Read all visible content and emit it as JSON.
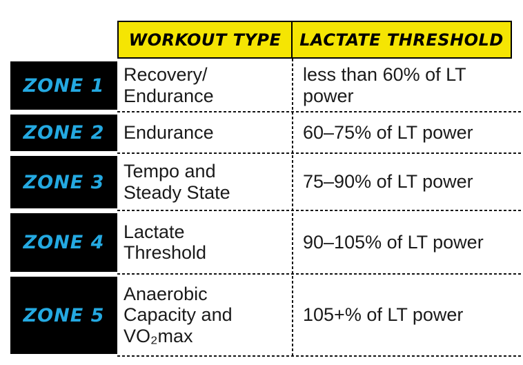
{
  "table": {
    "headers": {
      "workout_type": "WORKOUT TYPE",
      "lactate_threshold": "LACTATE THRESHOLD"
    },
    "rows": [
      {
        "zone": "ZONE 1",
        "workout_type": "Recovery/\nEndurance",
        "lactate_threshold": "less than 60% of LT\npower"
      },
      {
        "zone": "ZONE 2",
        "workout_type": "Endurance",
        "lactate_threshold": "60–75% of LT power"
      },
      {
        "zone": "ZONE 3",
        "workout_type": "Tempo and\nSteady State",
        "lactate_threshold": "75–90% of LT power"
      },
      {
        "zone": "ZONE 4",
        "workout_type": "Lactate\nThreshold",
        "lactate_threshold": "90–105% of LT power"
      },
      {
        "zone": "ZONE 5",
        "workout_type": "Anaerobic\nCapacity and\nVO₂max",
        "lactate_threshold": "105+% of LT power"
      }
    ],
    "colors": {
      "header_bg": "#F5E503",
      "zone_badge_bg": "#000000",
      "zone_label_text": "#24A9E1",
      "header_text": "#000000",
      "body_text": "#1A1A1A",
      "grid_line": "#111111"
    }
  }
}
